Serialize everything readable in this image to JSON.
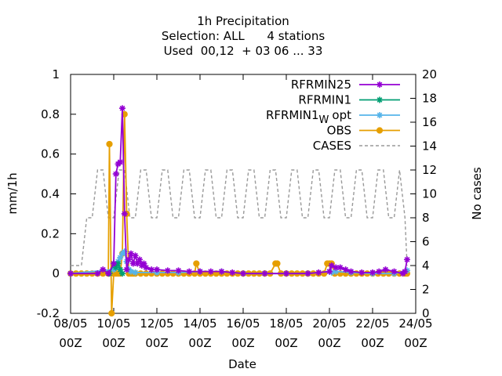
{
  "chart_data": {
    "type": "line",
    "title": [
      "1h Precipitation",
      "Selection: ALL      4 stations",
      "Used  00,12  + 03 06 ... 33"
    ],
    "xlabel": "Date",
    "ylabel": "mm/1h",
    "y2label": "No cases",
    "xlim": [
      0,
      16
    ],
    "ylim": [
      -0.2,
      1
    ],
    "y2lim": [
      0,
      20
    ],
    "xticks": [
      {
        "v": 0,
        "l1": "08/05",
        "l2": "00Z"
      },
      {
        "v": 2,
        "l1": "10/05",
        "l2": "00Z"
      },
      {
        "v": 4,
        "l1": "12/05",
        "l2": "00Z"
      },
      {
        "v": 6,
        "l1": "14/05",
        "l2": "00Z"
      },
      {
        "v": 8,
        "l1": "16/05",
        "l2": "00Z"
      },
      {
        "v": 10,
        "l1": "18/05",
        "l2": "00Z"
      },
      {
        "v": 12,
        "l1": "20/05",
        "l2": "00Z"
      },
      {
        "v": 14,
        "l1": "22/05",
        "l2": "00Z"
      },
      {
        "v": 16,
        "l1": "24/05",
        "l2": "00Z"
      }
    ],
    "yticks": [
      -0.2,
      0,
      0.2,
      0.4,
      0.6,
      0.8,
      1
    ],
    "ytick_labels": [
      "-0.2",
      "0",
      "0.2",
      "0.4",
      "0.6",
      "0.8",
      "1"
    ],
    "y2ticks": [
      0,
      2,
      4,
      6,
      8,
      10,
      12,
      14,
      16,
      18,
      20
    ],
    "legend_position": "top-right",
    "series": [
      {
        "name": "RFRMIN25",
        "axis": "y1",
        "color": "#9400d3",
        "marker": "star",
        "x": [
          0,
          1.25,
          1.5,
          1.75,
          2.0,
          2.1,
          2.2,
          2.3,
          2.4,
          2.5,
          2.6,
          2.7,
          2.8,
          2.9,
          3.0,
          3.1,
          3.2,
          3.3,
          3.4,
          3.5,
          3.75,
          4.0,
          4.5,
          5.0,
          5.5,
          6.0,
          6.5,
          7.0,
          7.5,
          8.0,
          9.0,
          10.0,
          11.0,
          11.5,
          12.0,
          12.1,
          12.3,
          12.5,
          12.75,
          13.0,
          13.5,
          14.0,
          14.3,
          14.6,
          15.0,
          15.4,
          15.5,
          15.6
        ],
        "y": [
          0,
          0,
          0.02,
          0,
          0.05,
          0.5,
          0.55,
          0.56,
          0.83,
          0.3,
          0.02,
          0.07,
          0.1,
          0.05,
          0.09,
          0.05,
          0.07,
          0.04,
          0.05,
          0.03,
          0.02,
          0.02,
          0.015,
          0.015,
          0.01,
          0.01,
          0.01,
          0.01,
          0.005,
          0,
          0,
          0,
          0,
          0.005,
          0.01,
          0.04,
          0.03,
          0.03,
          0.02,
          0.01,
          0.005,
          0.005,
          0.01,
          0.02,
          0.01,
          0,
          0.01,
          0.07
        ]
      },
      {
        "name": "RFRMIN1",
        "axis": "y1",
        "color": "#009e73",
        "marker": "star",
        "x": [
          1.8,
          2.0,
          2.1,
          2.2,
          2.3,
          2.4
        ],
        "y": [
          0,
          0.05,
          0.03,
          0.05,
          0.02,
          0
        ]
      },
      {
        "name": "RFRMIN1_W opt",
        "legend_main": "RFRMIN1",
        "legend_sub": "W",
        "legend_tail": "opt",
        "axis": "y1",
        "color": "#56b4e9",
        "marker": "star",
        "x": [
          0,
          2.0,
          2.1,
          2.2,
          2.3,
          2.4,
          2.5,
          2.6,
          2.7,
          2.8,
          3.0,
          4.0,
          5.0,
          6.0,
          7.0,
          8.0,
          9.0,
          10.0,
          11.0,
          12.0,
          12.1,
          12.3,
          13.0,
          14.0,
          15.0,
          15.6
        ],
        "y": [
          0,
          0.02,
          0.04,
          0.06,
          0.08,
          0.1,
          0.11,
          0.06,
          0.02,
          0.01,
          0.005,
          0.005,
          0.005,
          0.01,
          0.01,
          0,
          0,
          0,
          0,
          0.01,
          0.005,
          0.01,
          0.005,
          0,
          0,
          0.015
        ]
      },
      {
        "name": "OBS",
        "axis": "y1",
        "color": "#e69f00",
        "marker": "circle",
        "x": [
          0,
          0.25,
          0.5,
          0.75,
          1.0,
          1.25,
          1.5,
          1.75,
          1.8,
          1.9,
          2.0,
          2.1,
          2.2,
          2.3,
          2.4,
          2.5,
          2.6,
          2.7,
          2.8,
          2.9,
          3.0,
          3.25,
          3.5,
          3.75,
          4.0,
          4.25,
          4.5,
          4.75,
          5.0,
          5.25,
          5.5,
          5.75,
          5.83,
          6.0,
          6.25,
          6.5,
          6.75,
          7.0,
          7.25,
          7.5,
          7.75,
          8.0,
          8.25,
          8.5,
          8.75,
          9.0,
          9.25,
          9.5,
          9.58,
          9.75,
          10.0,
          10.25,
          10.5,
          10.75,
          11.0,
          11.25,
          11.5,
          11.75,
          11.9,
          12.0,
          12.1,
          12.25,
          12.5,
          12.75,
          13.0,
          13.25,
          13.5,
          13.75,
          14.0,
          14.25,
          14.5,
          14.75,
          15.0,
          15.25,
          15.5,
          15.6
        ],
        "y": [
          0,
          0,
          0,
          0,
          0,
          0,
          0,
          0,
          0.65,
          -0.2,
          0,
          0,
          0,
          0,
          0.1,
          0.8,
          0.3,
          0,
          0,
          0,
          0,
          0,
          0,
          0,
          0,
          0,
          0,
          0,
          0,
          0,
          0,
          0,
          0.05,
          0,
          0,
          0,
          0,
          0,
          0,
          0,
          0,
          0,
          0,
          0,
          0,
          0,
          0,
          0.05,
          0.05,
          0,
          0,
          0,
          0,
          0,
          0,
          0,
          0,
          0,
          0.05,
          0.05,
          0.05,
          0,
          0,
          0,
          0,
          0,
          0,
          0,
          0,
          0,
          0,
          0,
          0,
          0,
          0,
          0
        ]
      },
      {
        "name": "CASES",
        "axis": "y2",
        "color": "#999999",
        "dash": true,
        "x": [
          0,
          0.5,
          0.75,
          1.0,
          1.25,
          1.5,
          1.75,
          2.0,
          2.25,
          2.5,
          2.75,
          3.0,
          3.25,
          3.5,
          3.75,
          4.0,
          4.25,
          4.5,
          4.75,
          5.0,
          5.25,
          5.5,
          5.75,
          6.0,
          6.25,
          6.5,
          6.75,
          7.0,
          7.25,
          7.5,
          7.75,
          8.0,
          8.25,
          8.5,
          8.75,
          9.0,
          9.25,
          9.5,
          9.75,
          10.0,
          10.25,
          10.5,
          10.75,
          11.0,
          11.25,
          11.5,
          11.75,
          12.0,
          12.25,
          12.5,
          12.75,
          13.0,
          13.25,
          13.5,
          13.75,
          14.0,
          14.25,
          14.5,
          14.75,
          15.0,
          15.25,
          15.5,
          15.6
        ],
        "y": [
          4,
          4,
          8,
          8,
          12,
          12,
          8,
          8,
          12,
          12,
          8,
          8,
          12,
          12,
          8,
          8,
          12,
          12,
          8,
          8,
          12,
          12,
          8,
          8,
          12,
          12,
          8,
          8,
          12,
          12,
          8,
          8,
          12,
          12,
          8,
          8,
          12,
          12,
          8,
          8,
          12,
          12,
          8,
          8,
          12,
          12,
          8,
          8,
          12,
          12,
          8,
          8,
          12,
          12,
          8,
          8,
          12,
          12,
          8,
          8,
          12,
          8,
          4
        ]
      }
    ]
  }
}
